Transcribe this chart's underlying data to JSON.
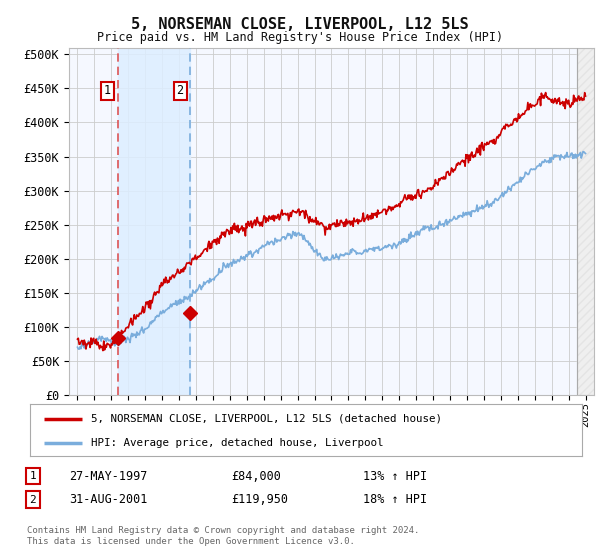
{
  "title": "5, NORSEMAN CLOSE, LIVERPOOL, L12 5LS",
  "subtitle": "Price paid vs. HM Land Registry's House Price Index (HPI)",
  "ylabel_ticks": [
    "£0",
    "£50K",
    "£100K",
    "£150K",
    "£200K",
    "£250K",
    "£300K",
    "£350K",
    "£400K",
    "£450K",
    "£500K"
  ],
  "ytick_values": [
    0,
    50000,
    100000,
    150000,
    200000,
    250000,
    300000,
    350000,
    400000,
    450000,
    500000
  ],
  "ylim": [
    0,
    510000
  ],
  "xlim_start": 1994.5,
  "xlim_end": 2025.5,
  "hpi_color": "#7aaddc",
  "price_color": "#cc0000",
  "sale1_year": 1997.38,
  "sale1_price": 84000,
  "sale2_year": 2001.66,
  "sale2_price": 119950,
  "legend_label1": "5, NORSEMAN CLOSE, LIVERPOOL, L12 5LS (detached house)",
  "legend_label2": "HPI: Average price, detached house, Liverpool",
  "table_row1": [
    "1",
    "27-MAY-1997",
    "£84,000",
    "13% ↑ HPI"
  ],
  "table_row2": [
    "2",
    "31-AUG-2001",
    "£119,950",
    "18% ↑ HPI"
  ],
  "footnote": "Contains HM Land Registry data © Crown copyright and database right 2024.\nThis data is licensed under the Open Government Licence v3.0.",
  "bg_color": "#ffffff",
  "plot_bg_color": "#f5f8ff",
  "grid_color": "#cccccc",
  "shade_color": "#ddeeff"
}
